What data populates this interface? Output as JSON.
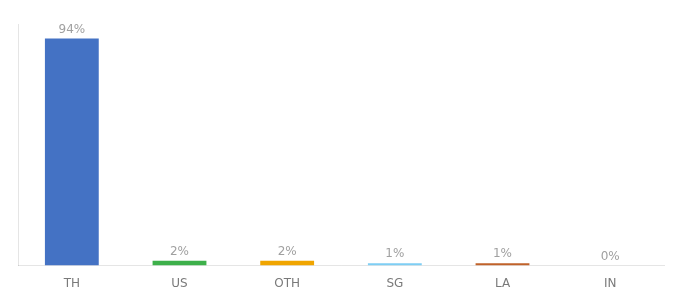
{
  "chart_data": {
    "type": "bar",
    "categories": [
      "TH",
      "US",
      "OTH",
      "SG",
      "LA",
      "IN"
    ],
    "values": [
      94,
      2,
      2,
      1,
      1,
      0
    ],
    "value_labels": [
      "94%",
      "2%",
      "2%",
      "1%",
      "1%",
      "0%"
    ],
    "colors": [
      "#4472c4",
      "#3db04a",
      "#f0a500",
      "#7ecef4",
      "#c0622a",
      "#d4b896"
    ],
    "ylim": [
      0,
      100
    ],
    "grid": false,
    "data_labels": true,
    "tick_labels": "x"
  }
}
